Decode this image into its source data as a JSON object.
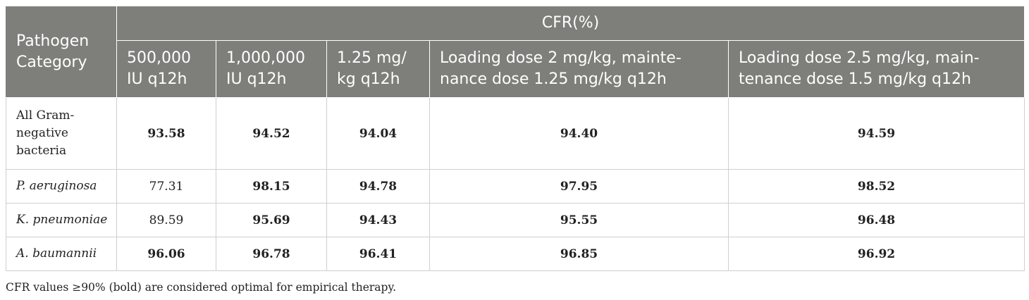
{
  "table": {
    "header": {
      "category": "Pathogen Category",
      "group": "CFR(%)",
      "columns": [
        "500,000 IU q12h",
        "1,000,000 IU q12h",
        "1.25 mg/ kg q12h",
        "Loading dose 2 mg/kg, mainte- nance dose 1.25 mg/kg q12h",
        "Loading dose 2.5 mg/kg, main- tenance dose 1.5 mg/kg q12h"
      ]
    },
    "rows": [
      {
        "pathogen": "All Gram- negative bacteria",
        "italic": false,
        "values": [
          "93.58",
          "94.52",
          "94.04",
          "94.40",
          "94.59"
        ],
        "bold": [
          true,
          true,
          true,
          true,
          true
        ]
      },
      {
        "pathogen": "P. aeruginosa",
        "italic": true,
        "values": [
          "77.31",
          "98.15",
          "94.78",
          "97.95",
          "98.52"
        ],
        "bold": [
          false,
          true,
          true,
          true,
          true
        ]
      },
      {
        "pathogen": "K. pneumoniae",
        "italic": true,
        "values": [
          "89.59",
          "95.69",
          "94.43",
          "95.55",
          "96.48"
        ],
        "bold": [
          false,
          true,
          true,
          true,
          true
        ]
      },
      {
        "pathogen": "A. baumannii",
        "italic": true,
        "values": [
          "96.06",
          "96.78",
          "96.41",
          "96.85",
          "96.92"
        ],
        "bold": [
          true,
          true,
          true,
          true,
          true
        ]
      }
    ]
  },
  "footnote": "CFR values ≥90% (bold) are considered optimal for empirical therapy.",
  "colors": {
    "header_bg": "#7e7f7b",
    "header_text": "#ffffff",
    "border": "#cfcfcf"
  }
}
